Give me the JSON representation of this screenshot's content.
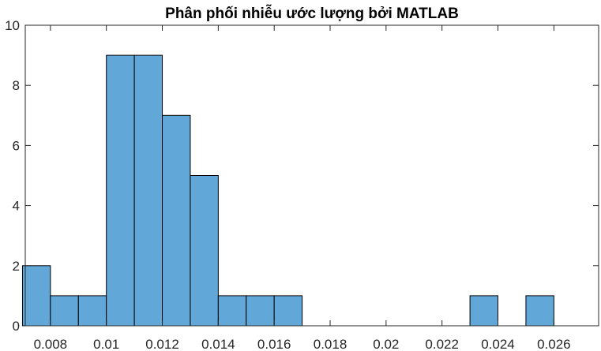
{
  "chart_data": {
    "type": "bar",
    "title": "Phân phối nhiễu ước lượng bởi MATLAB",
    "xlabel": "",
    "ylabel": "",
    "bin_edges": [
      0.007,
      0.008,
      0.009,
      0.01,
      0.011,
      0.012,
      0.013,
      0.014,
      0.015,
      0.016,
      0.017,
      0.018,
      0.019,
      0.02,
      0.021,
      0.022,
      0.023,
      0.024,
      0.025,
      0.026,
      0.027
    ],
    "values": [
      2,
      1,
      1,
      9,
      9,
      7,
      5,
      1,
      1,
      1,
      0,
      0,
      0,
      0,
      0,
      0,
      1,
      0,
      1,
      0
    ],
    "xlim": [
      0.0071,
      0.0276
    ],
    "ylim": [
      0,
      10
    ],
    "x_ticks": [
      0.008,
      0.01,
      0.012,
      0.014,
      0.016,
      0.018,
      0.02,
      0.022,
      0.024,
      0.026
    ],
    "x_tick_labels": [
      "0.008",
      "0.01",
      "0.012",
      "0.014",
      "0.016",
      "0.018",
      "0.02",
      "0.022",
      "0.024",
      "0.026"
    ],
    "y_ticks": [
      0,
      2,
      4,
      6,
      8,
      10
    ],
    "y_tick_labels": [
      "0",
      "2",
      "4",
      "6",
      "8",
      "10"
    ],
    "grid": false,
    "bar_color": "#61a7d8",
    "bar_edge_color": "#000000",
    "axis_color": "#262626"
  }
}
